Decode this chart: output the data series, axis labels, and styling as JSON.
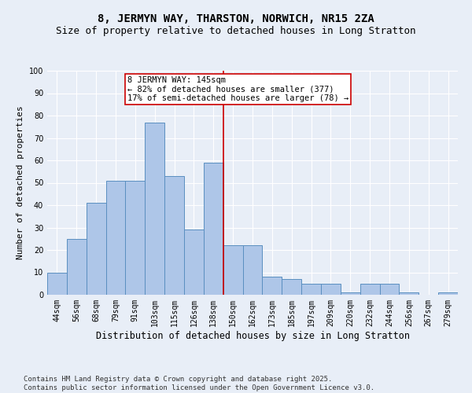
{
  "title": "8, JERMYN WAY, THARSTON, NORWICH, NR15 2ZA",
  "subtitle": "Size of property relative to detached houses in Long Stratton",
  "xlabel": "Distribution of detached houses by size in Long Stratton",
  "ylabel": "Number of detached properties",
  "categories": [
    "44sqm",
    "56sqm",
    "68sqm",
    "79sqm",
    "91sqm",
    "103sqm",
    "115sqm",
    "126sqm",
    "138sqm",
    "150sqm",
    "162sqm",
    "173sqm",
    "185sqm",
    "197sqm",
    "209sqm",
    "220sqm",
    "232sqm",
    "244sqm",
    "256sqm",
    "267sqm",
    "279sqm"
  ],
  "values": [
    10,
    25,
    41,
    51,
    51,
    77,
    53,
    29,
    59,
    22,
    22,
    8,
    7,
    5,
    5,
    1,
    5,
    5,
    1,
    0,
    1
  ],
  "bar_color": "#aec6e8",
  "bar_edge_color": "#5a8fc0",
  "property_line_color": "#cc0000",
  "annotation_line1": "8 JERMYN WAY: 145sqm",
  "annotation_line2": "← 82% of detached houses are smaller (377)",
  "annotation_line3": "17% of semi-detached houses are larger (78) →",
  "annotation_box_facecolor": "#ffffff",
  "annotation_box_edgecolor": "#cc0000",
  "footer": "Contains HM Land Registry data © Crown copyright and database right 2025.\nContains public sector information licensed under the Open Government Licence v3.0.",
  "bg_color": "#e8eef7",
  "ylim": [
    0,
    100
  ],
  "grid_color": "#ffffff",
  "title_fontsize": 10,
  "subtitle_fontsize": 9,
  "tick_fontsize": 7,
  "ylabel_fontsize": 8,
  "xlabel_fontsize": 8.5,
  "footer_fontsize": 6.5,
  "annotation_fontsize": 7.5,
  "line_x_index": 8.5
}
